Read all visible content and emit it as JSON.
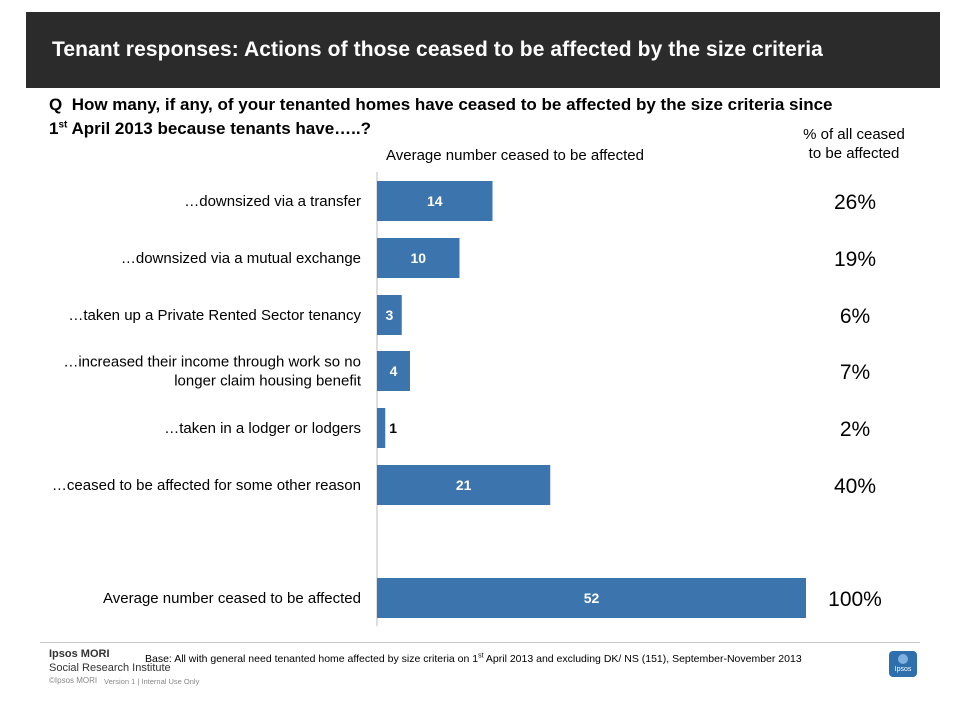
{
  "title": "Tenant responses: Actions of those ceased to be affected by the size criteria",
  "question": {
    "prefix": "Q",
    "text_a": "How many, if any, of your tenanted homes have ceased to be affected by the size criteria since",
    "date_num": "1",
    "date_sup": "st",
    "text_b": "April 2013 because tenants have…..?"
  },
  "pct_header": "% of all ceased to be affected",
  "chart_data": {
    "type": "bar",
    "orientation": "horizontal",
    "xlabel": "Average number ceased to be affected",
    "categories": [
      [
        "…downsized via a transfer"
      ],
      [
        "…downsized via a mutual exchange"
      ],
      [
        "…taken up a Private Rented Sector tenancy"
      ],
      [
        "…increased their income through work so no",
        "longer claim housing benefit"
      ],
      [
        "…taken in a lodger or lodgers"
      ],
      [
        "…ceased to be affected for some other reason"
      ],
      [
        "Average number ceased to be affected"
      ]
    ],
    "values": [
      14,
      10,
      3,
      4,
      1,
      21,
      52
    ],
    "percent_of_all": [
      "26%",
      "19%",
      "6%",
      "7%",
      "2%",
      "40%",
      "100%"
    ],
    "bar_color": "#3c75ad",
    "label_color_inside": "#ffffff",
    "grid": false
  },
  "footer": {
    "logo_line1": "Ipsos MORI",
    "logo_line2": "Social Research Institute",
    "base_a": "Base: All with general need tenanted home affected by size criteria on 1",
    "base_sup": "st",
    "base_b": " April 2013 and excluding DK/ NS (151), September-November 2013",
    "copyright": "©Ipsos MORI",
    "version": "Version 1 | Internal Use Only",
    "badge": "Ipsos"
  }
}
